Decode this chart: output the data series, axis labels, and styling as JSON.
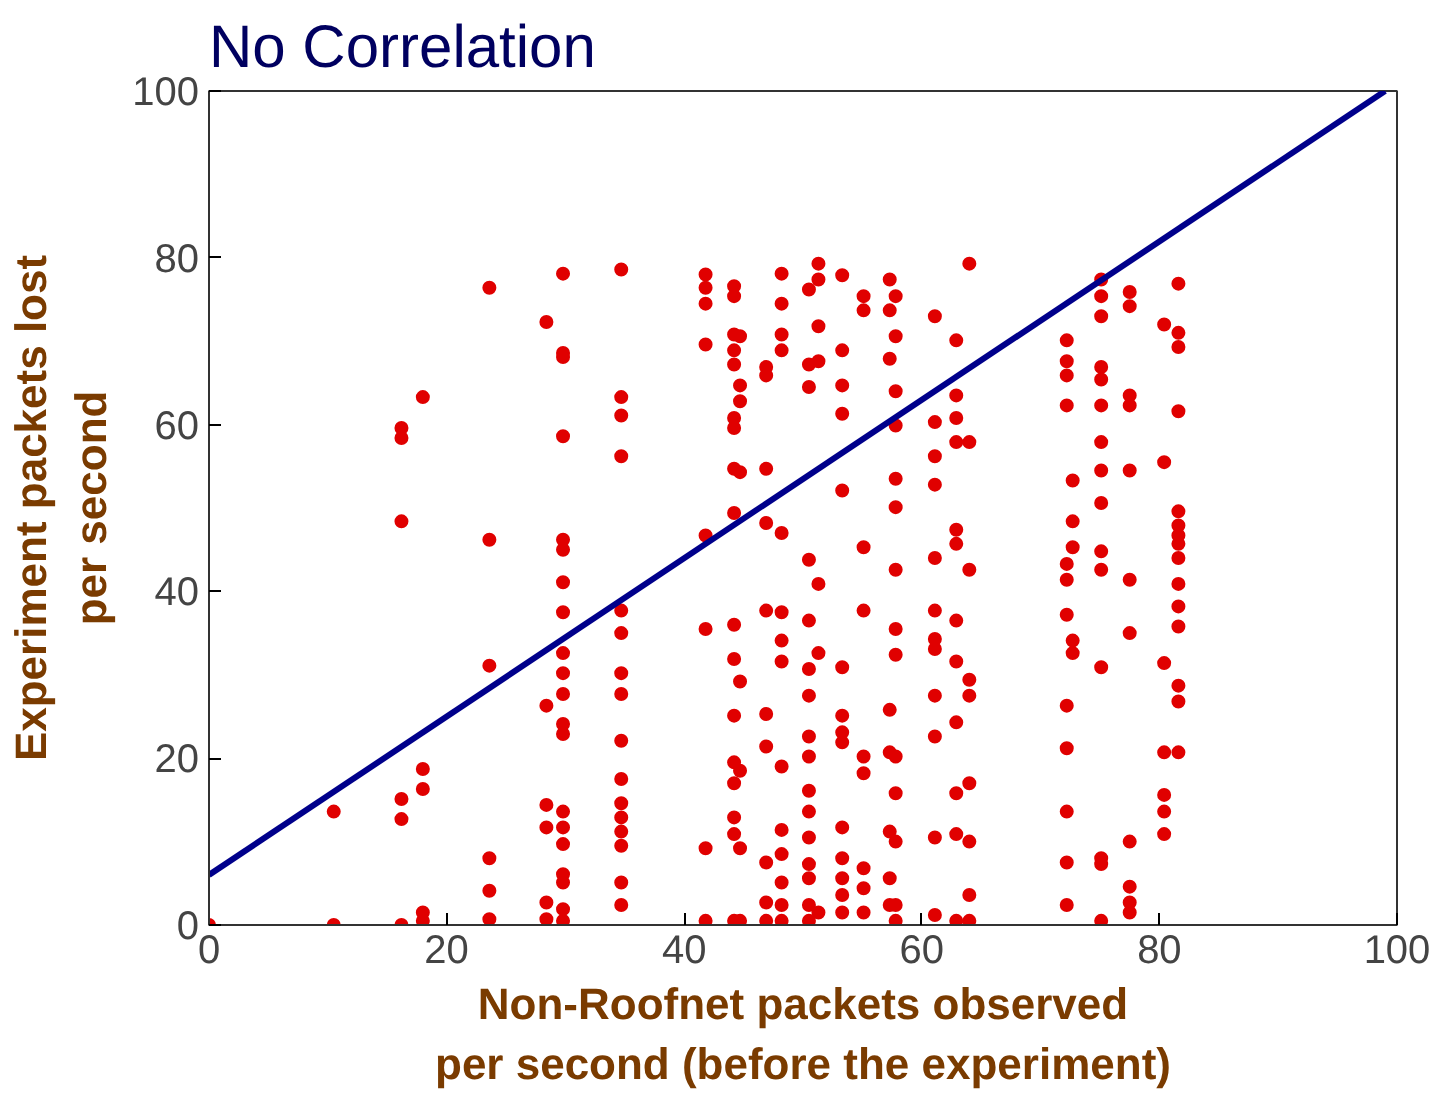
{
  "chart_data": {
    "type": "scatter",
    "title": "No Correlation",
    "xlabel": "Non-Roofnet packets observed\nper second (before the experiment)",
    "ylabel": "Experiment packets lost\nper second",
    "xlim": [
      0,
      100
    ],
    "ylim": [
      0,
      100
    ],
    "xticks": [
      0,
      20,
      40,
      60,
      80,
      100
    ],
    "yticks": [
      0,
      20,
      40,
      60,
      80,
      100
    ],
    "grid": false,
    "series": [
      {
        "marker": "circle",
        "color": "#e00000",
        "x": [
          0,
          10.5,
          10.5,
          16.2,
          16.2,
          16.2,
          16.2,
          16.2,
          16.2,
          18,
          18,
          18,
          18,
          18,
          23.6,
          23.6,
          23.6,
          23.6,
          23.6,
          23.6,
          28.4,
          28.4,
          28.4,
          28.4,
          28.4,
          28.4,
          29.8,
          29.8,
          29.8,
          29.8,
          29.8,
          29.8,
          29.8,
          29.8,
          29.8,
          29.8,
          29.8,
          29.8,
          29.8,
          29.8,
          29.8,
          29.8,
          29.8,
          29.8,
          29.8,
          29.8,
          34.7,
          34.7,
          34.7,
          34.7,
          34.7,
          34.7,
          34.7,
          34.7,
          34.7,
          34.7,
          34.7,
          34.7,
          34.7,
          34.7,
          34.7,
          34.7,
          41.8,
          41.8,
          41.8,
          41.8,
          41.8,
          41.8,
          41.8,
          41.8,
          44.2,
          44.2,
          44.2,
          44.2,
          44.2,
          44.2,
          44.2,
          44.2,
          44.2,
          44.2,
          44.2,
          44.2,
          44.2,
          44.2,
          44.2,
          44.2,
          44.2,
          44.7,
          44.7,
          44.7,
          44.7,
          44.7,
          44.7,
          44.7,
          44.7,
          46.9,
          46.9,
          46.9,
          46.9,
          46.9,
          46.9,
          46.9,
          46.9,
          46.9,
          46.9,
          48.2,
          48.2,
          48.2,
          48.2,
          48.2,
          48.2,
          48.2,
          48.2,
          48.2,
          48.2,
          48.2,
          48.2,
          48.2,
          48.2,
          50.5,
          50.5,
          50.5,
          50.5,
          50.5,
          50.5,
          50.5,
          50.5,
          50.5,
          50.5,
          50.5,
          50.5,
          50.5,
          50.5,
          50.5,
          50.5,
          51.3,
          51.3,
          51.3,
          51.3,
          51.3,
          51.3,
          51.3,
          53.3,
          53.3,
          53.3,
          53.3,
          53.3,
          53.3,
          53.3,
          53.3,
          53.3,
          53.3,
          53.3,
          53.3,
          53.3,
          53.3,
          55.1,
          55.1,
          55.1,
          55.1,
          55.1,
          55.1,
          55.1,
          55.1,
          55.1,
          57.3,
          57.3,
          57.3,
          57.3,
          57.3,
          57.3,
          57.3,
          57.3,
          57.8,
          57.8,
          57.8,
          57.8,
          57.8,
          57.8,
          57.8,
          57.8,
          57.8,
          57.8,
          57.8,
          57.8,
          57.8,
          57.8,
          61.1,
          61.1,
          61.1,
          61.1,
          61.1,
          61.1,
          61.1,
          61.1,
          61.1,
          61.1,
          61.1,
          61.1,
          62.9,
          62.9,
          62.9,
          62.9,
          62.9,
          62.9,
          62.9,
          62.9,
          62.9,
          62.9,
          62.9,
          62.9,
          64,
          64,
          64,
          64,
          64,
          64,
          64,
          64,
          64,
          72.2,
          72.2,
          72.2,
          72.2,
          72.2,
          72.2,
          72.2,
          72.2,
          72.2,
          72.2,
          72.2,
          72.2,
          72.7,
          72.7,
          72.7,
          72.7,
          72.7,
          75.1,
          75.1,
          75.1,
          75.1,
          75.1,
          75.1,
          75.1,
          75.1,
          75.1,
          75.1,
          75.1,
          75.1,
          75.1,
          75.1,
          75.1,
          77.5,
          77.5,
          77.5,
          77.5,
          77.5,
          77.5,
          77.5,
          77.5,
          77.5,
          77.5,
          77.5,
          80.4,
          80.4,
          80.4,
          80.4,
          80.4,
          80.4,
          80.4,
          81.6,
          81.6,
          81.6,
          81.6,
          81.6,
          81.6,
          81.6,
          81.6,
          81.6,
          81.6,
          81.6,
          81.6,
          81.6,
          81.6,
          81.6
        ],
        "values": [
          0,
          13.6,
          0,
          59.6,
          58.4,
          48.4,
          15.1,
          12.7,
          0,
          63.3,
          18.7,
          16.3,
          1.5,
          0.5,
          76.4,
          46.2,
          31.1,
          8,
          4.1,
          0.7,
          72.3,
          26.3,
          14.4,
          11.7,
          2.7,
          0.7,
          78.1,
          68.6,
          68.1,
          58.6,
          46.2,
          45,
          41.1,
          37.5,
          32.6,
          30.2,
          27.7,
          24.1,
          22.9,
          13.6,
          11.7,
          9.7,
          6.1,
          5.1,
          1.9,
          0.5,
          78.6,
          63.3,
          61.1,
          56.2,
          37.7,
          35,
          30.2,
          27.7,
          22.1,
          17.5,
          14.6,
          12.9,
          11.2,
          9.5,
          5.1,
          2.4,
          78,
          76.4,
          74.5,
          69.6,
          46.7,
          35.5,
          9.2,
          0.5,
          76.6,
          75.4,
          70.8,
          68.9,
          67.2,
          60.8,
          59.6,
          54.7,
          49.4,
          36,
          31.9,
          25.1,
          19.5,
          17,
          12.9,
          10.9,
          0.5,
          70.6,
          64.7,
          62.8,
          54.3,
          29.2,
          18.5,
          9.2,
          0.5,
          66.9,
          65.9,
          54.7,
          48.2,
          37.7,
          25.3,
          21.4,
          7.5,
          2.7,
          0.5,
          78.1,
          74.5,
          70.8,
          68.9,
          47,
          37.5,
          34.1,
          31.6,
          19,
          11.4,
          8.5,
          5.1,
          2.4,
          0.5,
          76.2,
          67.2,
          64.5,
          43.8,
          36.5,
          30.7,
          27.5,
          22.6,
          20.2,
          16.1,
          13.6,
          10.5,
          7.3,
          5.6,
          2.4,
          0.5,
          79.3,
          77.4,
          71.8,
          67.6,
          40.9,
          32.6,
          1.5,
          77.9,
          68.9,
          64.7,
          61.3,
          52.1,
          30.9,
          25.1,
          23.1,
          21.9,
          11.7,
          8,
          5.6,
          3.6,
          1.5,
          75.4,
          73.7,
          45.3,
          37.7,
          20.2,
          18.2,
          6.8,
          4.4,
          1.5,
          77.4,
          73.7,
          67.9,
          25.8,
          20.7,
          11.2,
          5.6,
          2.4,
          75.4,
          70.6,
          64,
          59.9,
          53.5,
          50.1,
          42.6,
          35.5,
          32.4,
          20.2,
          15.8,
          10,
          2.4,
          0.5,
          73,
          60.3,
          56.2,
          52.8,
          44,
          37.7,
          34.3,
          33.1,
          27.5,
          22.6,
          10.5,
          1.2,
          70.1,
          63.5,
          60.8,
          57.9,
          47.4,
          45.7,
          36.5,
          31.6,
          24.3,
          15.8,
          10.9,
          0.5,
          79.3,
          57.9,
          42.6,
          29.4,
          27.5,
          17,
          10,
          3.6,
          0.5,
          70.1,
          67.6,
          65.9,
          62.3,
          43.3,
          41.4,
          37.2,
          26.3,
          21.2,
          13.6,
          7.5,
          2.4,
          53.3,
          48.4,
          45.3,
          34.1,
          32.6,
          77.4,
          75.4,
          73,
          66.9,
          65.4,
          62.3,
          57.9,
          54.5,
          50.6,
          44.8,
          42.6,
          30.9,
          8,
          7.3,
          0.5,
          75.9,
          74.2,
          63.5,
          62.3,
          54.5,
          41.4,
          35,
          10,
          4.6,
          2.7,
          1.5,
          72,
          55.5,
          31.4,
          20.7,
          15.6,
          13.6,
          10.9,
          76.9,
          71,
          69.3,
          61.6,
          49.6,
          47.9,
          46.7,
          45.7,
          44,
          40.9,
          38.2,
          35.8,
          28.7,
          26.8,
          20.7
        ]
      },
      {
        "type": "line",
        "marker": "none",
        "color": "#00008b",
        "x": [
          0,
          99
        ],
        "values": [
          6,
          100
        ]
      }
    ]
  }
}
